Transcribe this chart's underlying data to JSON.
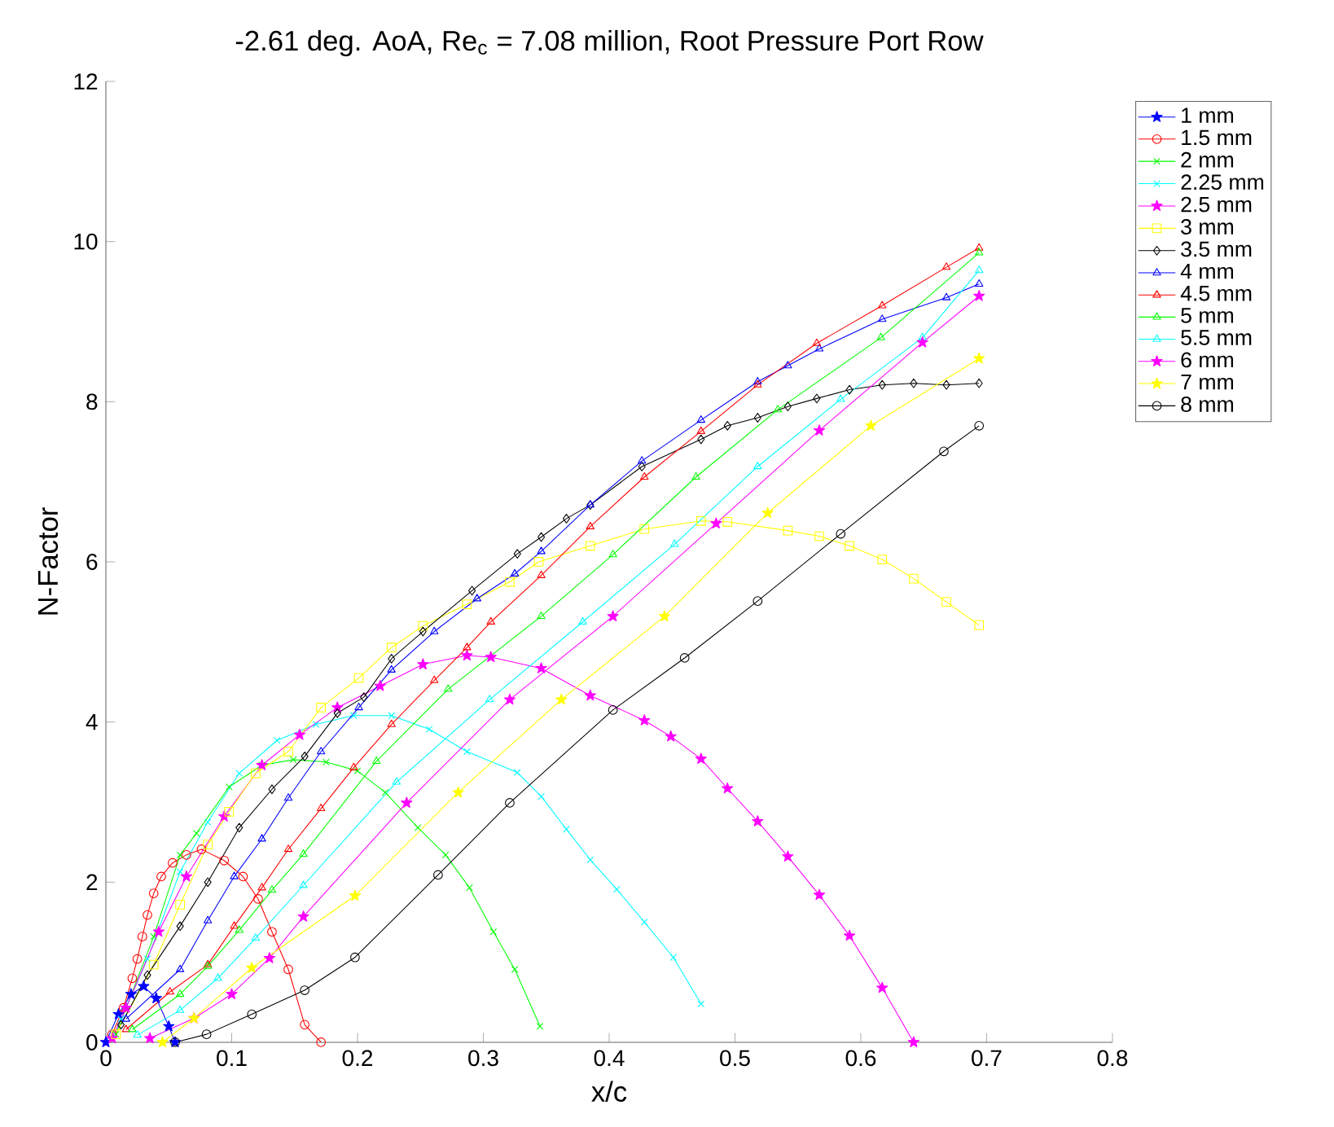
{
  "chart_data": {
    "type": "line",
    "title": "-2.61 deg. AoA, Re$_{c}$ = 7.08 million, Root Pressure Port Row",
    "xlabel": "x/c",
    "ylabel": "N-Factor",
    "xlim": [
      0,
      0.8
    ],
    "ylim": [
      0,
      12
    ],
    "xticks": [
      0,
      0.1,
      0.2,
      0.3,
      0.4,
      0.5,
      0.6,
      0.7,
      0.8
    ],
    "yticks": [
      0,
      2,
      4,
      6,
      8,
      10,
      12
    ],
    "grid": false,
    "legend": "top right",
    "line_style": "solid",
    "series": [
      {
        "name": "1 mm",
        "color": "#0000ff",
        "marker": "star",
        "x": [
          0,
          0.01,
          0.02,
          0.03,
          0.04,
          0.05,
          0.055
        ],
        "values": [
          0,
          0.35,
          0.6,
          0.7,
          0.55,
          0.2,
          0
        ]
      },
      {
        "name": "1.5 mm",
        "color": "#ff0000",
        "marker": "circle",
        "x": [
          0.005,
          0.014,
          0.021,
          0.025,
          0.029,
          0.033,
          0.038,
          0.044,
          0.053,
          0.064,
          0.076,
          0.094,
          0.109,
          0.121,
          0.132,
          0.145,
          0.158,
          0.171
        ],
        "values": [
          0.1,
          0.43,
          0.8,
          1.04,
          1.32,
          1.59,
          1.86,
          2.07,
          2.24,
          2.34,
          2.41,
          2.27,
          2.07,
          1.79,
          1.38,
          0.91,
          0.22,
          0
        ]
      },
      {
        "name": "2 mm",
        "color": "#00ff00",
        "marker": "cross",
        "x": [
          0.008,
          0.038,
          0.059,
          0.072,
          0.098,
          0.124,
          0.149,
          0.175,
          0.2,
          0.222,
          0.248,
          0.27,
          0.289,
          0.308,
          0.325,
          0.345
        ],
        "values": [
          0.1,
          1.32,
          2.34,
          2.61,
          3.19,
          3.46,
          3.53,
          3.5,
          3.39,
          3.12,
          2.68,
          2.34,
          1.93,
          1.38,
          0.91,
          0.2
        ]
      },
      {
        "name": "2.25 mm",
        "color": "#00ffff",
        "marker": "cross",
        "x": [
          0.005,
          0.012,
          0.033,
          0.059,
          0.081,
          0.106,
          0.136,
          0.167,
          0.197,
          0.227,
          0.257,
          0.287,
          0.327,
          0.346,
          0.366,
          0.385,
          0.406,
          0.428,
          0.451,
          0.473
        ],
        "values": [
          0.05,
          0.29,
          1.04,
          2.13,
          2.75,
          3.36,
          3.77,
          3.97,
          4.08,
          4.08,
          3.91,
          3.63,
          3.37,
          3.07,
          2.66,
          2.28,
          1.91,
          1.5,
          1.06,
          0.48
        ]
      },
      {
        "name": "2.5 mm",
        "color": "#ff00ff",
        "marker": "star",
        "x": [
          0.005,
          0.016,
          0.042,
          0.064,
          0.094,
          0.124,
          0.154,
          0.184,
          0.218,
          0.252,
          0.287,
          0.306,
          0.346,
          0.385,
          0.428,
          0.449,
          0.473,
          0.494,
          0.518,
          0.542,
          0.567,
          0.591,
          0.617,
          0.642
        ],
        "values": [
          0.05,
          0.43,
          1.38,
          2.07,
          2.82,
          3.46,
          3.84,
          4.18,
          4.45,
          4.72,
          4.83,
          4.81,
          4.67,
          4.33,
          4.02,
          3.82,
          3.54,
          3.17,
          2.76,
          2.32,
          1.84,
          1.33,
          0.68,
          0
        ]
      },
      {
        "name": "3 mm",
        "color": "#ffff00",
        "marker": "square",
        "x": [
          0.008,
          0.038,
          0.059,
          0.081,
          0.098,
          0.119,
          0.145,
          0.171,
          0.201,
          0.227,
          0.252,
          0.287,
          0.321,
          0.344,
          0.385,
          0.428,
          0.473,
          0.494,
          0.542,
          0.567,
          0.591,
          0.617,
          0.642,
          0.668,
          0.694
        ],
        "values": [
          0.1,
          0.97,
          1.72,
          2.47,
          2.88,
          3.36,
          3.63,
          4.18,
          4.55,
          4.93,
          5.2,
          5.47,
          5.75,
          6.0,
          6.2,
          6.41,
          6.51,
          6.5,
          6.39,
          6.32,
          6.2,
          6.03,
          5.79,
          5.5,
          5.21
        ]
      },
      {
        "name": "3.5 mm",
        "color": "#000000",
        "marker": "diamond",
        "x": [
          0.012,
          0.033,
          0.059,
          0.081,
          0.106,
          0.132,
          0.158,
          0.184,
          0.205,
          0.227,
          0.252,
          0.291,
          0.327,
          0.346,
          0.366,
          0.385,
          0.426,
          0.473,
          0.494,
          0.518,
          0.542,
          0.565,
          0.591,
          0.617,
          0.642,
          0.668,
          0.694
        ],
        "values": [
          0.22,
          0.84,
          1.45,
          2.0,
          2.68,
          3.16,
          3.57,
          4.11,
          4.31,
          4.79,
          5.13,
          5.64,
          6.1,
          6.31,
          6.54,
          6.71,
          7.19,
          7.53,
          7.7,
          7.8,
          7.94,
          8.04,
          8.15,
          8.21,
          8.23,
          8.21,
          8.23
        ]
      },
      {
        "name": "4 mm",
        "color": "#0000ff",
        "marker": "triangle",
        "x": [
          0.016,
          0.059,
          0.081,
          0.102,
          0.124,
          0.145,
          0.171,
          0.201,
          0.227,
          0.261,
          0.295,
          0.325,
          0.346,
          0.385,
          0.426,
          0.473,
          0.518,
          0.542,
          0.567,
          0.617,
          0.668,
          0.694
        ],
        "values": [
          0.29,
          0.91,
          1.52,
          2.07,
          2.54,
          3.05,
          3.63,
          4.18,
          4.65,
          5.13,
          5.54,
          5.85,
          6.13,
          6.71,
          7.26,
          7.77,
          8.25,
          8.45,
          8.66,
          9.03,
          9.3,
          9.47
        ]
      },
      {
        "name": "4.5 mm",
        "color": "#ff0000",
        "marker": "triangle",
        "x": [
          0.016,
          0.051,
          0.081,
          0.102,
          0.124,
          0.145,
          0.171,
          0.197,
          0.227,
          0.261,
          0.287,
          0.306,
          0.346,
          0.385,
          0.428,
          0.473,
          0.518,
          0.565,
          0.617,
          0.668,
          0.694
        ],
        "values": [
          0.16,
          0.63,
          0.97,
          1.45,
          1.93,
          2.41,
          2.92,
          3.43,
          3.97,
          4.52,
          4.93,
          5.25,
          5.83,
          6.44,
          7.06,
          7.63,
          8.21,
          8.73,
          9.2,
          9.68,
          9.92
        ]
      },
      {
        "name": "5 mm",
        "color": "#00ff00",
        "marker": "triangle",
        "x": [
          0.021,
          0.059,
          0.081,
          0.106,
          0.132,
          0.157,
          0.215,
          0.272,
          0.346,
          0.403,
          0.469,
          0.534,
          0.616,
          0.694
        ],
        "values": [
          0.16,
          0.6,
          0.95,
          1.4,
          1.9,
          2.35,
          3.51,
          4.41,
          5.32,
          6.09,
          7.06,
          7.9,
          8.8,
          9.86
        ]
      },
      {
        "name": "5.5 mm",
        "color": "#00ffff",
        "marker": "triangle",
        "x": [
          0.025,
          0.059,
          0.089,
          0.119,
          0.157,
          0.231,
          0.305,
          0.379,
          0.452,
          0.518,
          0.584,
          0.649,
          0.694
        ],
        "values": [
          0.09,
          0.4,
          0.8,
          1.3,
          1.96,
          3.25,
          4.28,
          5.25,
          6.22,
          7.19,
          8.03,
          8.8,
          9.64
        ]
      },
      {
        "name": "6 mm",
        "color": "#ff00ff",
        "marker": "star",
        "x": [
          0.035,
          0.07,
          0.1,
          0.13,
          0.157,
          0.239,
          0.321,
          0.403,
          0.485,
          0.567,
          0.649,
          0.694
        ],
        "values": [
          0.05,
          0.3,
          0.6,
          1.05,
          1.57,
          2.99,
          4.28,
          5.32,
          6.48,
          7.64,
          8.74,
          9.32
        ]
      },
      {
        "name": "7 mm",
        "color": "#ffff00",
        "marker": "star",
        "x": [
          0.045,
          0.07,
          0.116,
          0.198,
          0.28,
          0.362,
          0.444,
          0.526,
          0.608,
          0.694
        ],
        "values": [
          0,
          0.3,
          0.93,
          1.83,
          3.12,
          4.28,
          5.32,
          6.61,
          7.7,
          8.54
        ]
      },
      {
        "name": "8 mm",
        "color": "#000000",
        "marker": "circle",
        "x": [
          0.055,
          0.08,
          0.116,
          0.158,
          0.198,
          0.264,
          0.321,
          0.403,
          0.46,
          0.518,
          0.584,
          0.666,
          0.694
        ],
        "values": [
          0,
          0.1,
          0.35,
          0.65,
          1.06,
          2.09,
          2.99,
          4.15,
          4.8,
          5.51,
          6.35,
          7.38,
          7.7
        ]
      }
    ]
  }
}
